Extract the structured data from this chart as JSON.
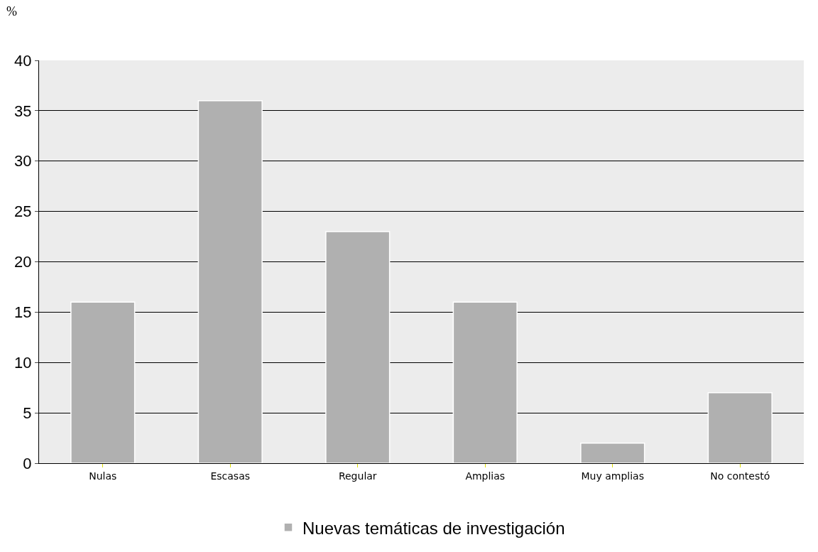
{
  "chart_data": {
    "type": "bar",
    "ylabel": "%",
    "categories": [
      "Nulas",
      "Escasas",
      "Regular",
      "Amplias",
      "Muy amplias",
      "No contestó"
    ],
    "series": [
      {
        "name": "Nuevas temáticas de investigación",
        "color": "#b0b0b0",
        "values": [
          16,
          36,
          23,
          16,
          2,
          7
        ]
      }
    ],
    "ylim": [
      0,
      40
    ],
    "yticks": [
      0,
      5,
      10,
      15,
      20,
      25,
      30,
      35,
      40
    ],
    "grid": "y",
    "legend": "bottom"
  }
}
